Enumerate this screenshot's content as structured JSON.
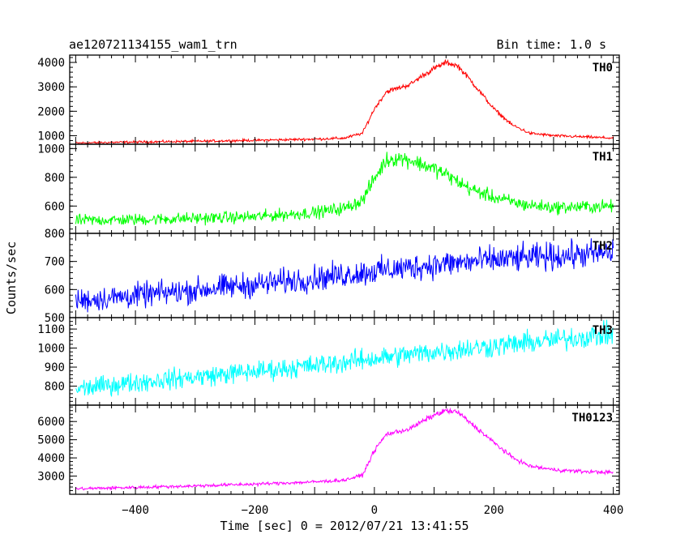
{
  "header": {
    "title": "ae120721134155_wam1_trn",
    "bin_time": "Bin time: 1.0 s"
  },
  "chart_data": {
    "type": "line",
    "title": "ae120721134155_wam1_trn",
    "subtitle": "Bin time: 1.0 s",
    "xlabel": "Time [sec] 0 = 2012/07/21 13:41:55",
    "ylabel": "Counts/sec",
    "xlim": [
      -510,
      410
    ],
    "x_ticks": [
      -400,
      -200,
      0,
      200,
      400
    ],
    "x_tick_labels": [
      "−400",
      "−200",
      "0",
      "200",
      "400"
    ],
    "panels": [
      {
        "name": "TH0",
        "color": "#ff0000",
        "ylim": [
          650,
          4300
        ],
        "y_ticks": [
          1000,
          2000,
          3000,
          4000
        ],
        "x": [
          -500,
          -400,
          -300,
          -200,
          -100,
          -50,
          -20,
          0,
          20,
          40,
          60,
          80,
          100,
          120,
          140,
          160,
          180,
          200,
          230,
          260,
          300,
          350,
          400
        ],
        "y": [
          700,
          740,
          770,
          810,
          860,
          900,
          1100,
          2100,
          2800,
          2950,
          3100,
          3450,
          3750,
          4000,
          3850,
          3300,
          2700,
          2100,
          1450,
          1100,
          1000,
          950,
          900
        ]
      },
      {
        "name": "TH1",
        "color": "#00ff00",
        "ylim": [
          410,
          1030
        ],
        "y_ticks": [
          600,
          800,
          1000
        ],
        "x": [
          -500,
          -400,
          -300,
          -200,
          -100,
          -50,
          -20,
          0,
          20,
          40,
          60,
          80,
          100,
          120,
          140,
          160,
          200,
          250,
          300,
          400
        ],
        "y": [
          500,
          505,
          515,
          525,
          555,
          585,
          640,
          790,
          920,
          935,
          920,
          890,
          860,
          820,
          770,
          720,
          660,
          610,
          590,
          600
        ]
      },
      {
        "name": "TH2",
        "color": "#0000ff",
        "ylim": [
          500,
          800
        ],
        "y_ticks": [
          500,
          600,
          700,
          800
        ],
        "x": [
          -500,
          -400,
          -300,
          -200,
          -100,
          0,
          100,
          200,
          300,
          400
        ],
        "y": [
          560,
          578,
          598,
          618,
          640,
          665,
          688,
          705,
          718,
          732
        ]
      },
      {
        "name": "TH3",
        "color": "#00ffff",
        "ylim": [
          700,
          1160
        ],
        "y_ticks": [
          800,
          900,
          1000,
          1100
        ],
        "x": [
          -500,
          -400,
          -300,
          -200,
          -100,
          0,
          100,
          200,
          300,
          400
        ],
        "y": [
          785,
          820,
          848,
          878,
          908,
          945,
          980,
          1010,
          1042,
          1075
        ]
      },
      {
        "name": "TH0123",
        "color": "#ff00ff",
        "ylim": [
          2000,
          6900
        ],
        "y_ticks": [
          3000,
          4000,
          5000,
          6000
        ],
        "x": [
          -500,
          -400,
          -300,
          -200,
          -100,
          -50,
          -20,
          0,
          20,
          40,
          60,
          80,
          100,
          120,
          140,
          160,
          180,
          200,
          230,
          260,
          300,
          350,
          400
        ],
        "y": [
          2300,
          2380,
          2460,
          2560,
          2680,
          2780,
          3050,
          4400,
          5300,
          5450,
          5600,
          6000,
          6350,
          6600,
          6500,
          5950,
          5400,
          4850,
          4050,
          3550,
          3350,
          3250,
          3200
        ]
      }
    ]
  }
}
